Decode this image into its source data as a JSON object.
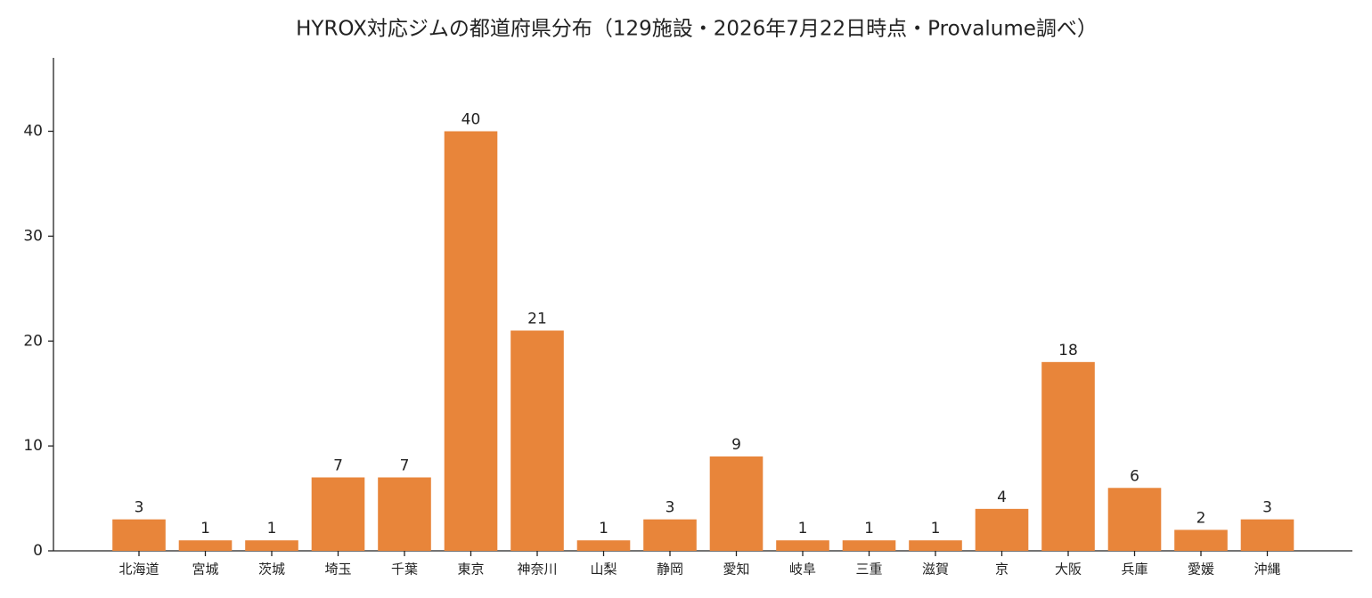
{
  "chart_data": {
    "type": "bar",
    "title": "HYROX対応ジムの都道府県分布（129施設・2026年7月22日時点・Provalume調べ）",
    "categories": [
      "北海道",
      "宮城",
      "茨城",
      "埼玉",
      "千葉",
      "東京",
      "神奈川",
      "山梨",
      "静岡",
      "愛知",
      "岐阜",
      "三重",
      "滋賀",
      "京",
      "大阪",
      "兵庫",
      "愛媛",
      "沖縄"
    ],
    "values": [
      3,
      1,
      1,
      7,
      7,
      40,
      21,
      1,
      3,
      9,
      1,
      1,
      1,
      4,
      18,
      6,
      2,
      3
    ],
    "color": "#e8853a",
    "ylim": [
      0,
      47
    ],
    "yticks": [
      0,
      10,
      20,
      30,
      40
    ],
    "grid": false
  }
}
